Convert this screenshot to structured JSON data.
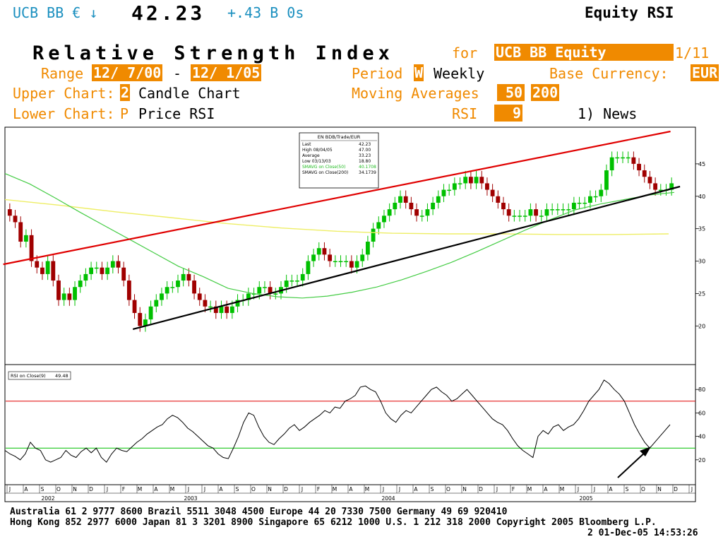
{
  "header": {
    "ticker": "UCB BB € ↓",
    "price": "42.23",
    "change": "+.43 B 0s",
    "function_name": "Equity RSI"
  },
  "form": {
    "title": "Relative Strength Index",
    "for_label": "for",
    "security": "UCB  BB Equity",
    "page": "1/11",
    "range_label": "Range",
    "range_start": "12/ 7/00",
    "range_dash": "-",
    "range_end": "12/ 1/05",
    "period_label": "Period",
    "period_code": "W",
    "period_value": "Weekly",
    "base_currency_label": "Base Currency:",
    "base_currency": "EUR",
    "upper_chart_label": "Upper Chart:",
    "upper_chart_code": "2",
    "upper_chart_value": "Candle Chart",
    "moving_averages_label": "Moving Averages",
    "ma1": "50",
    "ma2": "200",
    "lower_chart_label": "Lower Chart:",
    "lower_chart_code": "P",
    "lower_chart_value": "Price  RSI",
    "rsi_label": "RSI",
    "rsi_period": "9",
    "news_link": "1) News"
  },
  "legend": {
    "title": "EN BDB/Trade/EUR",
    "rows": [
      {
        "label": "Last",
        "value": "42.23"
      },
      {
        "label": "High  08/04/05",
        "value": "47.00"
      },
      {
        "label": "Average",
        "value": "33.23"
      },
      {
        "label": "Low  03/13/03",
        "value": "18.80"
      },
      {
        "label": "SMAVG on Close(50)",
        "value": "40.1708"
      },
      {
        "label": "SMAVG on Close(200)",
        "value": "34.1739"
      }
    ],
    "rsi_label": "RSI on Close(9)",
    "rsi_value": "49.48"
  },
  "colors": {
    "accent_orange": "#f08a00",
    "header_cyan": "#1a8fbf",
    "candle_up": "#00c000",
    "candle_down": "#a00000",
    "ma50": "#44cc44",
    "ma200": "#eeee66",
    "trend_upper": "#e00000",
    "trend_lower": "#000000",
    "rsi_overbought": "#e00000",
    "rsi_oversold": "#00c000"
  },
  "chart_data": [
    {
      "type": "candlestick",
      "ylim": [
        16,
        50
      ],
      "ytick_labels": [
        "20",
        "25",
        "30",
        "35",
        "40",
        "45"
      ],
      "yticks": [
        20,
        25,
        30,
        35,
        40,
        45
      ],
      "close_weekly_estimate": [
        37,
        36,
        33,
        34,
        30,
        29,
        28,
        30,
        27,
        24,
        25,
        24,
        26,
        27,
        28,
        29,
        29,
        28,
        29,
        30,
        29,
        27,
        24,
        22,
        20,
        21,
        23,
        24,
        25,
        26,
        26,
        27,
        28,
        27,
        25,
        24,
        23,
        23,
        22,
        23,
        22,
        23,
        24,
        24,
        25,
        25,
        26,
        26,
        25,
        25,
        26,
        27,
        27,
        27,
        28,
        30,
        31,
        32,
        31,
        30,
        30,
        30,
        30,
        29,
        30,
        31,
        33,
        35,
        36,
        37,
        38,
        39,
        40,
        39,
        38,
        37,
        37,
        38,
        39,
        40,
        41,
        41,
        42,
        42,
        43,
        42,
        43,
        42,
        41,
        40,
        39,
        38,
        37,
        37,
        37,
        37,
        38,
        37,
        37,
        38,
        38,
        38,
        38,
        38,
        39,
        39,
        39,
        40,
        40,
        41,
        44,
        46,
        46,
        46,
        46,
        45,
        44,
        43,
        42,
        41,
        41,
        41,
        42
      ],
      "ma50_estimate": [
        43.5,
        41.9,
        39.8,
        37.6,
        35.5,
        33.4,
        31.3,
        29.2,
        27.6,
        25.8,
        25.0,
        24.5,
        24.3,
        24.6,
        25.2,
        26.0,
        27.1,
        28.4,
        29.8,
        31.4,
        33.1,
        34.8,
        36.4,
        37.9,
        38.8,
        39.5,
        40.2,
        40.6
      ],
      "ma200_estimate": [
        39.5,
        38.6,
        37.6,
        36.7,
        35.8,
        35.1,
        34.6,
        34.3,
        34.2,
        34.2,
        34.1,
        34.1,
        34.2
      ],
      "trendline_upper_estimate": [
        [
          2002.4,
          29.5
        ],
        [
          2005.9,
          50.0
        ]
      ],
      "trendline_lower_estimate": [
        [
          2003.08,
          19.5
        ],
        [
          2005.95,
          41.5
        ]
      ]
    },
    {
      "type": "line",
      "ylim": [
        0,
        100
      ],
      "yticks": [
        20,
        40,
        60,
        80
      ],
      "ytick_labels": [
        "20",
        "40",
        "60",
        "80"
      ],
      "overbought": 70,
      "oversold": 30,
      "rsi_weekly_estimate": [
        28,
        25,
        23,
        20,
        25,
        35,
        30,
        28,
        20,
        18,
        20,
        22,
        28,
        24,
        22,
        27,
        30,
        26,
        30,
        22,
        18,
        25,
        30,
        28,
        27,
        31,
        35,
        38,
        42,
        45,
        48,
        50,
        55,
        58,
        56,
        52,
        47,
        44,
        40,
        36,
        32,
        30,
        25,
        22,
        21,
        30,
        40,
        52,
        60,
        58,
        48,
        40,
        35,
        33,
        38,
        42,
        47,
        50,
        45,
        48,
        52,
        55,
        58,
        62,
        60,
        65,
        64,
        70,
        72,
        75,
        82,
        83,
        80,
        78,
        70,
        60,
        55,
        52,
        58,
        62,
        60,
        65,
        70,
        75,
        80,
        82,
        78,
        75,
        70,
        72,
        76,
        80,
        75,
        70,
        65,
        60,
        55,
        52,
        50,
        45,
        38,
        32,
        28,
        25,
        22,
        40,
        45,
        42,
        48,
        50,
        45,
        48,
        50,
        55,
        62,
        70,
        75,
        80,
        88,
        85,
        80,
        76,
        70,
        60,
        50,
        42,
        35,
        30,
        35,
        40,
        45,
        50
      ]
    }
  ],
  "x_axis": {
    "months": [
      "J",
      "A",
      "S",
      "O",
      "N",
      "D",
      "J",
      "F",
      "M",
      "A",
      "M",
      "J",
      "J",
      "A",
      "S",
      "O",
      "N",
      "D",
      "J",
      "F",
      "M",
      "A",
      "M",
      "J",
      "J",
      "A",
      "S",
      "O",
      "N",
      "D",
      "J",
      "F",
      "M",
      "A",
      "M",
      "J",
      "J",
      "A",
      "S",
      "O",
      "N",
      "D",
      "J"
    ],
    "years": [
      "2002",
      "2003",
      "2004",
      "2005"
    ]
  },
  "annotation": {
    "arrow": "black-arrow-pointing-to-rsi-low"
  },
  "footer": {
    "line1": "Australia 61 2 9777 8600          Brazil 5511 3048 4500          Europe 44 20 7330 7500          Germany 49 69 920410",
    "line2": "Hong Kong 852 2977 6000 Japan 81 3 3201 8900 Singapore 65 6212 1000 U.S. 1 212 318 2000 Copyright 2005 Bloomberg L.P.",
    "line3": "2 01-Dec-05 14:53:26"
  }
}
